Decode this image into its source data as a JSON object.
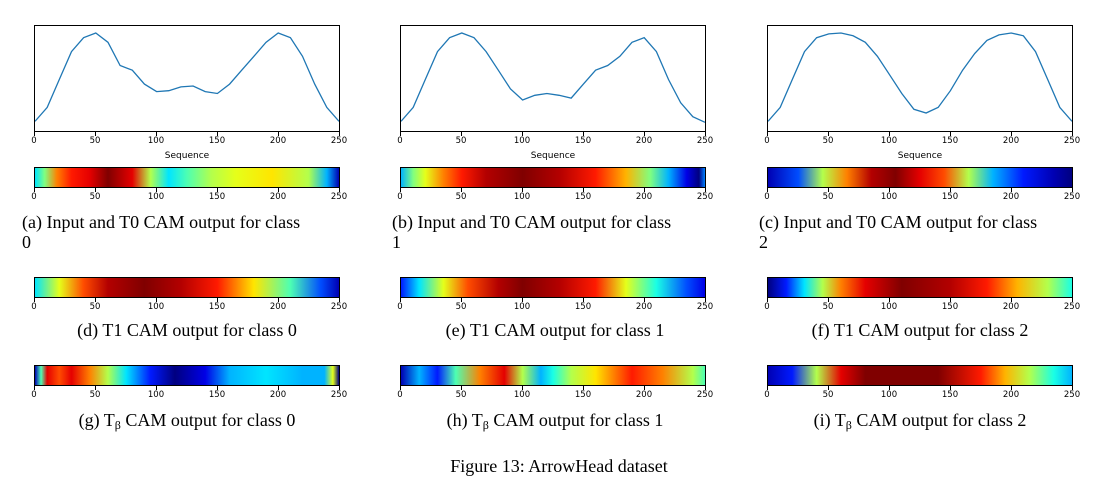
{
  "figure_caption": "Figure 13: ArrowHead dataset",
  "xlabel": "Sequence",
  "tick_labels": [
    "0",
    "50",
    "100",
    "150",
    "200",
    "250"
  ],
  "captions": {
    "a": {
      "prefix": "(a) Input and T0 CAM output for class",
      "suffix": "0"
    },
    "b": {
      "prefix": "(b) Input and T0 CAM output for class",
      "suffix": "1"
    },
    "c": {
      "prefix": "(c) Input and T0 CAM output for class",
      "suffix": "2"
    },
    "d": "(d) T1 CAM output for class 0",
    "e": "(e) T1 CAM output for class 1",
    "f": "(f) T1 CAM output for class 2",
    "g": {
      "pre": "(g) T",
      "sub": "β",
      "post": " CAM output for class 0"
    },
    "h": {
      "pre": "(h) T",
      "sub": "β",
      "post": " CAM output for class 1"
    },
    "i": {
      "pre": "(i) T",
      "sub": "β",
      "post": " CAM output for class 2"
    }
  },
  "colors": {
    "line": "#1f77b4"
  },
  "chart_data": [
    {
      "type": "line",
      "panel": "a",
      "xlim": [
        0,
        250
      ],
      "x": [
        0,
        10,
        20,
        30,
        40,
        50,
        60,
        70,
        80,
        90,
        100,
        110,
        120,
        130,
        140,
        150,
        160,
        170,
        180,
        190,
        200,
        210,
        220,
        230,
        240,
        250
      ],
      "y": [
        0.05,
        0.2,
        0.5,
        0.8,
        0.95,
        1.0,
        0.9,
        0.65,
        0.6,
        0.45,
        0.37,
        0.38,
        0.42,
        0.43,
        0.37,
        0.35,
        0.45,
        0.6,
        0.75,
        0.9,
        1.0,
        0.95,
        0.75,
        0.45,
        0.2,
        0.05
      ]
    },
    {
      "type": "line",
      "panel": "b",
      "xlim": [
        0,
        250
      ],
      "x": [
        0,
        10,
        20,
        30,
        40,
        50,
        60,
        70,
        80,
        90,
        100,
        110,
        120,
        130,
        140,
        150,
        160,
        170,
        180,
        190,
        200,
        210,
        220,
        230,
        240,
        250
      ],
      "y": [
        0.05,
        0.2,
        0.5,
        0.8,
        0.95,
        1.0,
        0.95,
        0.8,
        0.6,
        0.4,
        0.28,
        0.33,
        0.35,
        0.33,
        0.3,
        0.45,
        0.6,
        0.65,
        0.75,
        0.9,
        0.95,
        0.8,
        0.5,
        0.25,
        0.1,
        0.04
      ]
    },
    {
      "type": "line",
      "panel": "c",
      "xlim": [
        0,
        250
      ],
      "x": [
        0,
        10,
        20,
        30,
        40,
        50,
        60,
        70,
        80,
        90,
        100,
        110,
        120,
        130,
        140,
        150,
        160,
        170,
        180,
        190,
        200,
        210,
        220,
        230,
        240,
        250
      ],
      "y": [
        0.05,
        0.2,
        0.5,
        0.8,
        0.95,
        0.99,
        1.0,
        0.97,
        0.9,
        0.75,
        0.55,
        0.35,
        0.18,
        0.14,
        0.2,
        0.38,
        0.6,
        0.78,
        0.92,
        0.98,
        1.0,
        0.97,
        0.8,
        0.5,
        0.2,
        0.05
      ]
    },
    {
      "type": "heatmap",
      "panel": "a",
      "xlim": [
        0,
        250
      ],
      "stops": [
        [
          0,
          0.35
        ],
        [
          8,
          0.5
        ],
        [
          18,
          0.75
        ],
        [
          30,
          0.85
        ],
        [
          45,
          0.9
        ],
        [
          60,
          1.0
        ],
        [
          80,
          0.9
        ],
        [
          95,
          0.55
        ],
        [
          110,
          0.35
        ],
        [
          125,
          0.45
        ],
        [
          145,
          0.55
        ],
        [
          165,
          0.6
        ],
        [
          195,
          0.65
        ],
        [
          225,
          0.55
        ],
        [
          240,
          0.3
        ],
        [
          250,
          0.05
        ]
      ]
    },
    {
      "type": "heatmap",
      "panel": "b",
      "xlim": [
        0,
        250
      ],
      "stops": [
        [
          0,
          0.3
        ],
        [
          10,
          0.5
        ],
        [
          20,
          0.6
        ],
        [
          35,
          0.75
        ],
        [
          50,
          0.85
        ],
        [
          70,
          0.95
        ],
        [
          100,
          1.0
        ],
        [
          130,
          0.95
        ],
        [
          160,
          0.85
        ],
        [
          185,
          0.7
        ],
        [
          205,
          0.5
        ],
        [
          220,
          0.3
        ],
        [
          235,
          0.1
        ],
        [
          245,
          0.0
        ],
        [
          250,
          0.25
        ]
      ]
    },
    {
      "type": "heatmap",
      "panel": "c",
      "xlim": [
        0,
        250
      ],
      "stops": [
        [
          0,
          0.05
        ],
        [
          25,
          0.2
        ],
        [
          45,
          0.55
        ],
        [
          65,
          0.75
        ],
        [
          85,
          0.95
        ],
        [
          105,
          1.0
        ],
        [
          125,
          0.9
        ],
        [
          145,
          0.8
        ],
        [
          165,
          0.55
        ],
        [
          185,
          0.3
        ],
        [
          210,
          0.15
        ],
        [
          235,
          0.05
        ],
        [
          250,
          0.0
        ]
      ]
    },
    {
      "type": "heatmap",
      "panel": "d",
      "xlim": [
        0,
        250
      ],
      "stops": [
        [
          0,
          0.35
        ],
        [
          20,
          0.6
        ],
        [
          40,
          0.8
        ],
        [
          60,
          0.95
        ],
        [
          90,
          1.0
        ],
        [
          120,
          0.95
        ],
        [
          150,
          0.85
        ],
        [
          180,
          0.65
        ],
        [
          210,
          0.45
        ],
        [
          235,
          0.2
        ],
        [
          250,
          0.05
        ]
      ]
    },
    {
      "type": "heatmap",
      "panel": "e",
      "xlim": [
        0,
        250
      ],
      "stops": [
        [
          0,
          0.15
        ],
        [
          15,
          0.35
        ],
        [
          35,
          0.6
        ],
        [
          55,
          0.8
        ],
        [
          80,
          0.95
        ],
        [
          100,
          1.0
        ],
        [
          130,
          0.95
        ],
        [
          160,
          0.85
        ],
        [
          185,
          0.6
        ],
        [
          210,
          0.4
        ],
        [
          235,
          0.2
        ],
        [
          250,
          0.1
        ]
      ]
    },
    {
      "type": "heatmap",
      "panel": "f",
      "xlim": [
        0,
        250
      ],
      "stops": [
        [
          0,
          0.0
        ],
        [
          15,
          0.15
        ],
        [
          30,
          0.35
        ],
        [
          45,
          0.55
        ],
        [
          60,
          0.75
        ],
        [
          80,
          0.9
        ],
        [
          110,
          1.0
        ],
        [
          150,
          0.95
        ],
        [
          180,
          0.85
        ],
        [
          205,
          0.7
        ],
        [
          230,
          0.55
        ],
        [
          250,
          0.4
        ]
      ]
    },
    {
      "type": "heatmap",
      "panel": "g",
      "xlim": [
        0,
        250
      ],
      "stops": [
        [
          0,
          0.05
        ],
        [
          5,
          0.45
        ],
        [
          10,
          0.9
        ],
        [
          20,
          0.8
        ],
        [
          30,
          0.9
        ],
        [
          45,
          0.75
        ],
        [
          60,
          0.55
        ],
        [
          75,
          0.35
        ],
        [
          95,
          0.15
        ],
        [
          115,
          0.0
        ],
        [
          140,
          0.1
        ],
        [
          160,
          0.3
        ],
        [
          190,
          0.35
        ],
        [
          220,
          0.3
        ],
        [
          238,
          0.3
        ],
        [
          245,
          0.6
        ],
        [
          250,
          0.0
        ]
      ]
    },
    {
      "type": "heatmap",
      "panel": "h",
      "xlim": [
        0,
        250
      ],
      "stops": [
        [
          0,
          0.05
        ],
        [
          15,
          0.3
        ],
        [
          30,
          0.15
        ],
        [
          45,
          0.45
        ],
        [
          65,
          0.75
        ],
        [
          85,
          0.9
        ],
        [
          100,
          0.55
        ],
        [
          115,
          0.3
        ],
        [
          125,
          0.4
        ],
        [
          140,
          0.55
        ],
        [
          160,
          0.65
        ],
        [
          190,
          0.85
        ],
        [
          215,
          0.75
        ],
        [
          240,
          0.55
        ],
        [
          250,
          0.45
        ]
      ]
    },
    {
      "type": "heatmap",
      "panel": "i",
      "xlim": [
        0,
        250
      ],
      "stops": [
        [
          0,
          0.05
        ],
        [
          20,
          0.15
        ],
        [
          40,
          0.55
        ],
        [
          60,
          0.9
        ],
        [
          80,
          1.0
        ],
        [
          140,
          1.0
        ],
        [
          175,
          0.85
        ],
        [
          195,
          0.7
        ],
        [
          215,
          0.55
        ],
        [
          235,
          0.4
        ],
        [
          250,
          0.3
        ]
      ]
    }
  ]
}
